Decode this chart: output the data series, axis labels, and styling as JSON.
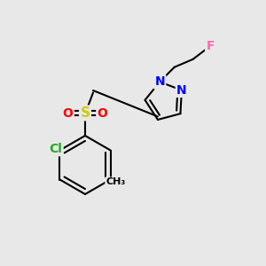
{
  "background_color": "#e8e8e8",
  "bond_color": "#000000",
  "bond_lw": 1.5,
  "atom_colors": {
    "F": "#ff69b4",
    "Cl": "#22aa22",
    "N": "#0000ff",
    "O": "#ff0000",
    "S": "#cccc00",
    "C": "#000000"
  },
  "font_size": 9
}
